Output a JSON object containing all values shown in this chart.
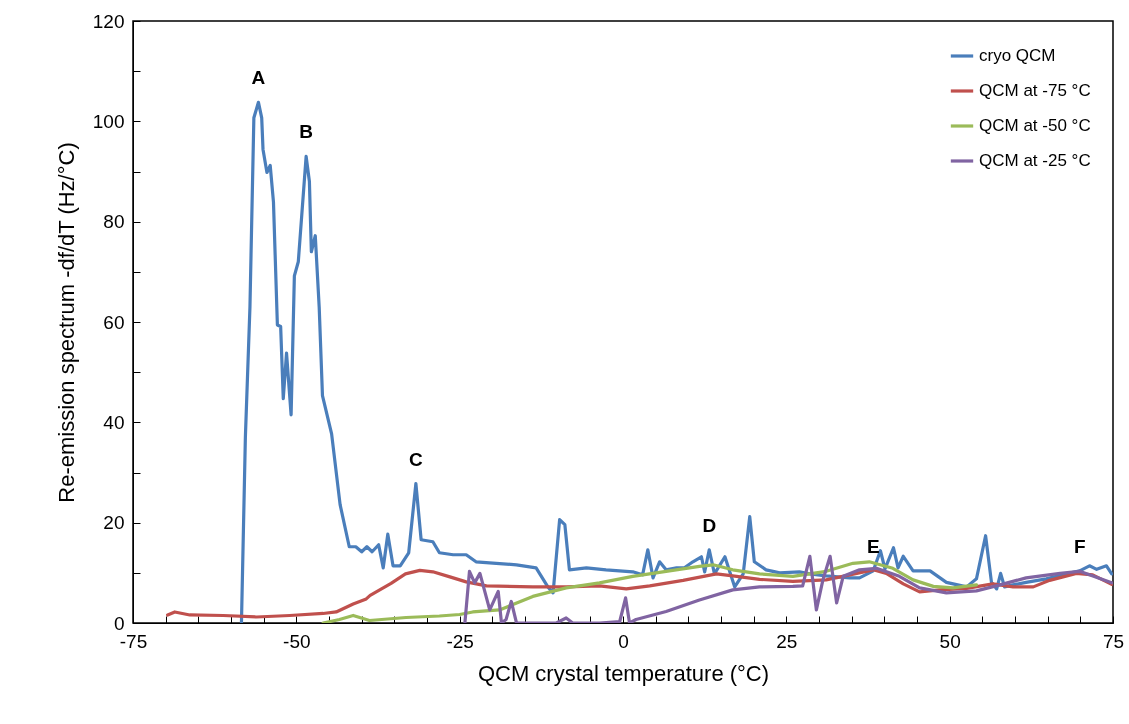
{
  "chart_data": {
    "type": "line",
    "xlabel": "QCM crystal temperature (°C)",
    "ylabel": "Re-emission spectrum -df/dT (Hz/°C)",
    "xlim": [
      -75,
      75
    ],
    "ylim": [
      0,
      120
    ],
    "xticks": [
      -75,
      {
        "value": -70,
        "label": null
      },
      {
        "value": -65,
        "label": null
      },
      {
        "value": -60,
        "label": null
      },
      {
        "value": -55,
        "label": null
      },
      -50,
      {
        "value": -45,
        "label": null
      },
      {
        "value": -40,
        "label": null
      },
      {
        "value": -35,
        "label": null
      },
      {
        "value": -30,
        "label": null
      },
      -25,
      {
        "value": -20,
        "label": null
      },
      {
        "value": -15,
        "label": null
      },
      {
        "value": -10,
        "label": null
      },
      {
        "value": -5,
        "label": null
      },
      0,
      {
        "value": 5,
        "label": null
      },
      {
        "value": 10,
        "label": null
      },
      {
        "value": 15,
        "label": null
      },
      {
        "value": 20,
        "label": null
      },
      25,
      {
        "value": 30,
        "label": null
      },
      {
        "value": 35,
        "label": null
      },
      {
        "value": 40,
        "label": null
      },
      {
        "value": 45,
        "label": null
      },
      50,
      {
        "value": 55,
        "label": null
      },
      {
        "value": 60,
        "label": null
      },
      {
        "value": 65,
        "label": null
      },
      {
        "value": 70,
        "label": null
      },
      75
    ],
    "yticks": [
      0,
      {
        "value": 10,
        "label": null
      },
      20,
      {
        "value": 30,
        "label": null
      },
      40,
      {
        "value": 50,
        "label": null
      },
      60,
      {
        "value": 70,
        "label": null
      },
      80,
      {
        "value": 90,
        "label": null
      },
      100,
      {
        "value": 110,
        "label": null
      },
      120
    ],
    "legend": "top right",
    "annotations": [
      {
        "text": "A",
        "x": -55.8,
        "y": 103.8
      },
      {
        "text": "B",
        "x": -48.5,
        "y": 93
      },
      {
        "text": "C",
        "x": -31.7,
        "y": 27.8
      },
      {
        "text": "D",
        "x": 13.2,
        "y": 14.6
      },
      {
        "text": "E",
        "x": 38.3,
        "y": 10.4
      },
      {
        "text": "F",
        "x": 69.9,
        "y": 10.4
      }
    ],
    "series": [
      {
        "name": "cryo QCM",
        "color": "#4a7ebb",
        "x": [
          -58.4,
          -57.8,
          -57.1,
          -56.5,
          -55.8,
          -55.3,
          -55.1,
          -54.5,
          -54.0,
          -53.5,
          -52.9,
          -52.4,
          -52.0,
          -51.5,
          -50.8,
          -50.3,
          -49.7,
          -48.5,
          -48.0,
          -47.7,
          -47.1,
          -46.5,
          -46.0,
          -44.6,
          -43.3,
          -41.9,
          -40.9,
          -40.0,
          -39.2,
          -38.4,
          -37.4,
          -36.7,
          -36.0,
          -35.2,
          -34.1,
          -32.8,
          -31.7,
          -30.9,
          -29.1,
          -28.1,
          -26.0,
          -24.0,
          -22.5,
          -19.4,
          -16.3,
          -13.3,
          -11.5,
          -10.7,
          -9.7,
          -8.9,
          -8.2,
          -5.6,
          -2.6,
          1.5,
          3.0,
          3.8,
          4.6,
          5.6,
          6.6,
          8.2,
          9.4,
          10.7,
          12.0,
          12.5,
          13.2,
          14.0,
          15.6,
          17.1,
          18.4,
          19.4,
          20.1,
          21.9,
          24.0,
          27.0,
          28.6,
          31.1,
          34.7,
          36.2,
          38.3,
          39.4,
          40.1,
          41.4,
          42.1,
          42.9,
          44.4,
          47.0,
          49.5,
          52.6,
          54.1,
          55.5,
          56.4,
          57.2,
          57.8,
          58.4,
          59.7,
          61.7,
          64.8,
          67.9,
          69.9,
          71.4,
          72.5,
          74.0,
          74.8
        ],
        "values": [
          0,
          37,
          63,
          100.7,
          103.8,
          100.7,
          94.4,
          89.8,
          91.2,
          83.9,
          59.4,
          59.1,
          44.7,
          53.8,
          41.5,
          69.2,
          72,
          93,
          88,
          74,
          77.2,
          62.9,
          45.3,
          37.7,
          23.6,
          15.2,
          15.2,
          14.2,
          15.2,
          14.2,
          15.6,
          11,
          17.7,
          11.4,
          11.4,
          14,
          27.8,
          16.6,
          16.2,
          14,
          13.6,
          13.6,
          12.2,
          11.9,
          11.6,
          11,
          7.2,
          6,
          20.6,
          19.6,
          10.6,
          11,
          10.6,
          10.2,
          9.6,
          14.6,
          9,
          12.2,
          10.6,
          11,
          11,
          12.2,
          13.2,
          10.2,
          14.6,
          9.8,
          13.2,
          7.2,
          9.8,
          21.2,
          12.2,
          10.6,
          10,
          10.2,
          9.8,
          9.4,
          9,
          9,
          10.4,
          14.4,
          10.8,
          15,
          11,
          13.3,
          10.4,
          10.4,
          8.1,
          7.2,
          8.8,
          17.4,
          8.1,
          6.8,
          9.9,
          7.2,
          7.6,
          8.1,
          8.8,
          9.8,
          10.4,
          11.4,
          10.7,
          11.4,
          9.8
        ]
      },
      {
        "name": "QCM at -75 °C",
        "color": "#c0504d",
        "x": [
          -69.7,
          -68.6,
          -66.3,
          -61.2,
          -56.1,
          -51.0,
          -45.9,
          -43.9,
          -41.3,
          -39.3,
          -38.7,
          -35.5,
          -33.3,
          -31.1,
          -29.1,
          -26.5,
          -24.0,
          -20.9,
          -13.8,
          -8.7,
          -3.6,
          0.5,
          4.1,
          9.2,
          14.3,
          16.8,
          20.9,
          26.0,
          31.1,
          34.7,
          38.3,
          40.3,
          42.9,
          45.4,
          48.5,
          52.6,
          56.6,
          59.7,
          62.8,
          65.3,
          69.4,
          71.9,
          74.8
        ],
        "values": [
          1.6,
          2.2,
          1.6,
          1.5,
          1.2,
          1.5,
          1.9,
          2.2,
          3.8,
          4.8,
          5.5,
          7.9,
          9.8,
          10.5,
          10.2,
          9.2,
          8.2,
          7.4,
          7.2,
          7.2,
          7.4,
          6.8,
          7.4,
          8.5,
          9.8,
          9.4,
          8.7,
          8.3,
          8.6,
          9.6,
          10.6,
          9.9,
          7.8,
          6.2,
          6.6,
          6.9,
          7.8,
          7.2,
          7.2,
          8.5,
          9.9,
          9.6,
          7.7
        ]
      },
      {
        "name": "QCM at -50 °C",
        "color": "#9bbb59",
        "x": [
          -45.9,
          -43.4,
          -41.3,
          -38.8,
          -33.2,
          -28.1,
          -25.0,
          -23.0,
          -18.9,
          -13.8,
          -8.7,
          -3.6,
          1.5,
          6.6,
          11.7,
          13.8,
          16.8,
          20.9,
          26.0,
          31.1,
          35.2,
          37.7,
          41.3,
          44.4,
          47.5,
          50.5,
          54.1
        ],
        "values": [
          0,
          0.7,
          1.5,
          0.5,
          1.1,
          1.4,
          1.7,
          2.2,
          2.6,
          5.3,
          7.0,
          8.0,
          9.3,
          10.3,
          11.3,
          11.6,
          10.6,
          9.8,
          9.3,
          10.3,
          11.9,
          12.2,
          10.9,
          8.6,
          7.3,
          7.0,
          7.6
        ]
      },
      {
        "name": "QCM at -25 °C",
        "color": "#8064a2",
        "x": [
          -24.2,
          -23.5,
          -22.7,
          -21.9,
          -20.4,
          -19.1,
          -18.6,
          -17.9,
          -17.1,
          -16.3,
          -10.2,
          -8.7,
          -7.7,
          -3.6,
          -0.5,
          0.4,
          1.0,
          2.0,
          6.6,
          11.7,
          16.8,
          20.9,
          26.0,
          27.5,
          28.6,
          29.6,
          30.6,
          31.7,
          32.7,
          33.7,
          36.2,
          38.8,
          42.3,
          45.4,
          49.5,
          54.1,
          57.7,
          61.7,
          66.9,
          69.9,
          74.8
        ],
        "values": [
          0,
          10.3,
          8.0,
          9.9,
          2.6,
          6.3,
          0,
          0.7,
          4.3,
          0,
          0,
          1.0,
          0,
          0,
          0.3,
          5.0,
          0,
          0.7,
          2.3,
          4.6,
          6.6,
          7.2,
          7.3,
          7.4,
          13.3,
          2.6,
          8.6,
          13.3,
          4.0,
          9.3,
          10.6,
          10.9,
          9.3,
          7.0,
          6.0,
          6.4,
          7.6,
          9.0,
          9.9,
          10.3,
          8.0
        ]
      }
    ]
  }
}
